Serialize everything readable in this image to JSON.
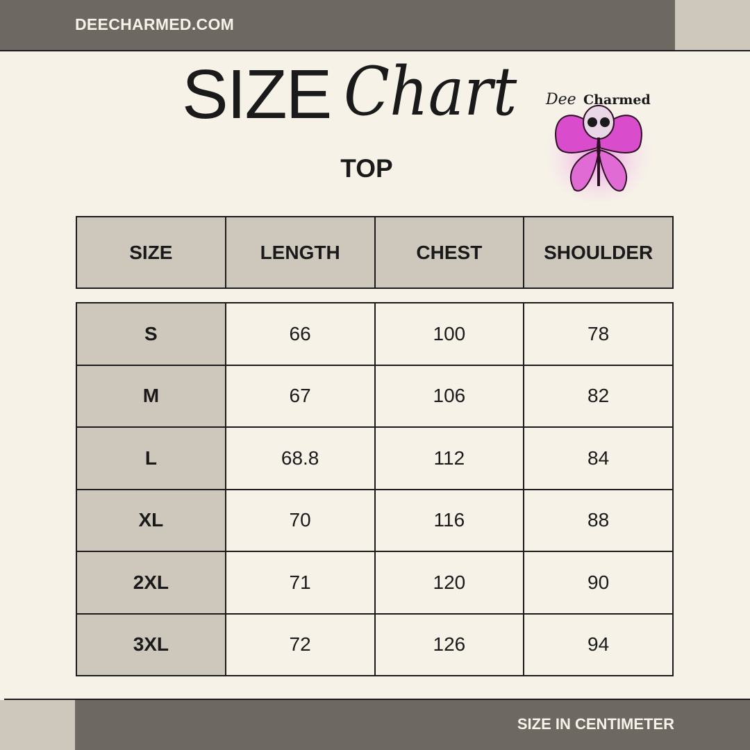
{
  "header": {
    "site": "DEECHARMED.COM",
    "title_bold": "SIZE",
    "title_script": "Chart",
    "subtitle": "TOP",
    "logo_text": "Dee Charmed"
  },
  "colors": {
    "background": "#f6f2e8",
    "bar": "#6d6962",
    "accent": "#cdc7bc",
    "logo_pink": "#e25ad8"
  },
  "table": {
    "columns": [
      "SIZE",
      "LENGTH",
      "CHEST",
      "SHOULDER"
    ],
    "rows": [
      [
        "S",
        "66",
        "100",
        "78"
      ],
      [
        "M",
        "67",
        "106",
        "82"
      ],
      [
        "L",
        "68.8",
        "112",
        "84"
      ],
      [
        "XL",
        "70",
        "116",
        "88"
      ],
      [
        "2XL",
        "71",
        "120",
        "90"
      ],
      [
        "3XL",
        "72",
        "126",
        "94"
      ]
    ]
  },
  "footer": {
    "unit_note": "SIZE IN CENTIMETER"
  }
}
